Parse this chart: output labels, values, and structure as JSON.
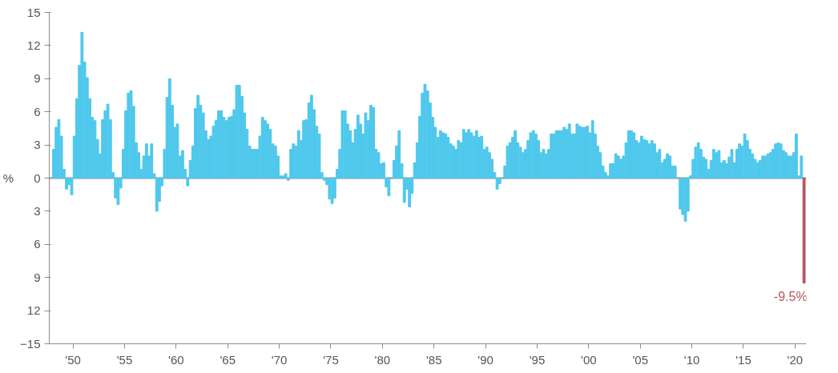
{
  "chart_data": {
    "type": "bar",
    "ylabel": "%",
    "x": [
      1948.125,
      1948.375,
      1948.625,
      1948.875,
      1949.125,
      1949.375,
      1949.625,
      1949.875,
      1950.125,
      1950.375,
      1950.625,
      1950.875,
      1951.125,
      1951.375,
      1951.625,
      1951.875,
      1952.125,
      1952.375,
      1952.625,
      1952.875,
      1953.125,
      1953.375,
      1953.625,
      1953.875,
      1954.125,
      1954.375,
      1954.625,
      1954.875,
      1955.125,
      1955.375,
      1955.625,
      1955.875,
      1956.125,
      1956.375,
      1956.625,
      1956.875,
      1957.125,
      1957.375,
      1957.625,
      1957.875,
      1958.125,
      1958.375,
      1958.625,
      1958.875,
      1959.125,
      1959.375,
      1959.625,
      1959.875,
      1960.125,
      1960.375,
      1960.625,
      1960.875,
      1961.125,
      1961.375,
      1961.625,
      1961.875,
      1962.125,
      1962.375,
      1962.625,
      1962.875,
      1963.125,
      1963.375,
      1963.625,
      1963.875,
      1964.125,
      1964.375,
      1964.625,
      1964.875,
      1965.125,
      1965.375,
      1965.625,
      1965.875,
      1966.125,
      1966.375,
      1966.625,
      1966.875,
      1967.125,
      1967.375,
      1967.625,
      1967.875,
      1968.125,
      1968.375,
      1968.625,
      1968.875,
      1969.125,
      1969.375,
      1969.625,
      1969.875,
      1970.125,
      1970.375,
      1970.625,
      1970.875,
      1971.125,
      1971.375,
      1971.625,
      1971.875,
      1972.125,
      1972.375,
      1972.625,
      1972.875,
      1973.125,
      1973.375,
      1973.625,
      1973.875,
      1974.125,
      1974.375,
      1974.625,
      1974.875,
      1975.125,
      1975.375,
      1975.625,
      1975.875,
      1976.125,
      1976.375,
      1976.625,
      1976.875,
      1977.125,
      1977.375,
      1977.625,
      1977.875,
      1978.125,
      1978.375,
      1978.625,
      1978.875,
      1979.125,
      1979.375,
      1979.625,
      1979.875,
      1980.125,
      1980.375,
      1980.625,
      1980.875,
      1981.125,
      1981.375,
      1981.625,
      1981.875,
      1982.125,
      1982.375,
      1982.625,
      1982.875,
      1983.125,
      1983.375,
      1983.625,
      1983.875,
      1984.125,
      1984.375,
      1984.625,
      1984.875,
      1985.125,
      1985.375,
      1985.625,
      1985.875,
      1986.125,
      1986.375,
      1986.625,
      1986.875,
      1987.125,
      1987.375,
      1987.625,
      1987.875,
      1988.125,
      1988.375,
      1988.625,
      1988.875,
      1989.125,
      1989.375,
      1989.625,
      1989.875,
      1990.125,
      1990.375,
      1990.625,
      1990.875,
      1991.125,
      1991.375,
      1991.625,
      1991.875,
      1992.125,
      1992.375,
      1992.625,
      1992.875,
      1993.125,
      1993.375,
      1993.625,
      1993.875,
      1994.125,
      1994.375,
      1994.625,
      1994.875,
      1995.125,
      1995.375,
      1995.625,
      1995.875,
      1996.125,
      1996.375,
      1996.625,
      1996.875,
      1997.125,
      1997.375,
      1997.625,
      1997.875,
      1998.125,
      1998.375,
      1998.625,
      1998.875,
      1999.125,
      1999.375,
      1999.625,
      1999.875,
      2000.125,
      2000.375,
      2000.625,
      2000.875,
      2001.125,
      2001.375,
      2001.625,
      2001.875,
      2002.125,
      2002.375,
      2002.625,
      2002.875,
      2003.125,
      2003.375,
      2003.625,
      2003.875,
      2004.125,
      2004.375,
      2004.625,
      2004.875,
      2005.125,
      2005.375,
      2005.625,
      2005.875,
      2006.125,
      2006.375,
      2006.625,
      2006.875,
      2007.125,
      2007.375,
      2007.625,
      2007.875,
      2008.125,
      2008.375,
      2008.625,
      2008.875,
      2009.125,
      2009.375,
      2009.625,
      2009.875,
      2010.125,
      2010.375,
      2010.625,
      2010.875,
      2011.125,
      2011.375,
      2011.625,
      2011.875,
      2012.125,
      2012.375,
      2012.625,
      2012.875,
      2013.125,
      2013.375,
      2013.625,
      2013.875,
      2014.125,
      2014.375,
      2014.625,
      2014.875,
      2015.125,
      2015.375,
      2015.625,
      2015.875,
      2016.125,
      2016.375,
      2016.625,
      2016.875,
      2017.125,
      2017.375,
      2017.625,
      2017.875,
      2018.125,
      2018.375,
      2018.625,
      2018.875,
      2019.125,
      2019.375,
      2019.625,
      2019.875,
      2020.125,
      2020.375,
      2020.625,
      2020.875
    ],
    "values": [
      2.6,
      4.6,
      5.3,
      3.8,
      0.8,
      -1.0,
      -0.6,
      -1.5,
      3.8,
      7.2,
      10.2,
      13.2,
      10.5,
      9.1,
      7.2,
      5.5,
      5.2,
      3.5,
      2.2,
      5.3,
      6.1,
      6.7,
      5.3,
      0.5,
      -1.8,
      -2.4,
      -0.9,
      2.6,
      6.1,
      7.7,
      7.9,
      6.5,
      3.2,
      2.3,
      0.8,
      2.0,
      3.1,
      2.0,
      3.1,
      0.4,
      -3.0,
      -2.1,
      -0.7,
      2.6,
      7.3,
      9.0,
      6.6,
      4.6,
      4.9,
      2.0,
      2.5,
      0.8,
      -0.7,
      1.6,
      2.9,
      6.3,
      7.5,
      6.6,
      5.9,
      4.3,
      3.5,
      3.8,
      4.7,
      5.2,
      6.1,
      6.1,
      5.5,
      5.2,
      5.5,
      5.6,
      6.2,
      8.4,
      8.4,
      7.4,
      5.9,
      4.4,
      2.9,
      2.6,
      2.6,
      2.6,
      3.8,
      5.5,
      5.2,
      4.9,
      4.4,
      3.1,
      2.9,
      2.0,
      0.2,
      0.2,
      0.4,
      -0.2,
      2.6,
      3.1,
      2.9,
      4.3,
      3.4,
      5.2,
      5.3,
      6.8,
      7.5,
      6.2,
      4.7,
      4.0,
      0.5,
      -0.2,
      -0.6,
      -1.9,
      -2.3,
      -1.8,
      0.8,
      2.6,
      6.1,
      6.1,
      4.9,
      4.3,
      3.2,
      4.4,
      5.7,
      4.9,
      4.0,
      5.9,
      5.2,
      6.6,
      6.4,
      2.6,
      2.3,
      1.3,
      1.4,
      -0.8,
      -1.6,
      null,
      1.6,
      2.9,
      4.3,
      1.3,
      -2.2,
      -1.0,
      -2.6,
      -1.4,
      1.4,
      3.2,
      5.6,
      7.7,
      8.5,
      7.9,
      6.8,
      5.5,
      4.6,
      3.7,
      4.3,
      4.1,
      4.0,
      3.7,
      3.1,
      2.9,
      2.6,
      3.4,
      3.2,
      4.4,
      4.1,
      4.4,
      4.1,
      3.8,
      4.3,
      3.7,
      3.8,
      2.6,
      2.8,
      2.3,
      1.7,
      0.5,
      -1.0,
      -0.5,
      null,
      1.1,
      2.9,
      3.2,
      3.7,
      4.3,
      3.2,
      2.8,
      2.3,
      2.6,
      3.4,
      4.1,
      4.3,
      4.0,
      3.4,
      2.3,
      2.6,
      2.2,
      2.6,
      4.0,
      4.0,
      4.3,
      4.3,
      4.3,
      4.6,
      4.4,
      4.9,
      4.0,
      4.0,
      4.9,
      4.7,
      4.6,
      4.6,
      4.7,
      4.1,
      5.2,
      4.0,
      2.9,
      2.3,
      1.1,
      0.5,
      0.2,
      1.3,
      1.3,
      2.2,
      2.0,
      1.7,
      2.0,
      3.2,
      4.3,
      4.3,
      4.1,
      3.4,
      3.2,
      3.8,
      3.5,
      3.4,
      3.1,
      3.4,
      3.1,
      2.3,
      2.6,
      1.4,
      1.7,
      2.2,
      2.0,
      1.1,
      1.1,
      null,
      -2.8,
      -3.3,
      -3.9,
      -3.0,
      0.2,
      1.7,
      2.8,
      3.2,
      2.6,
      1.9,
      1.7,
      0.8,
      1.6,
      2.6,
      2.3,
      2.5,
      1.4,
      1.6,
      1.3,
      1.9,
      2.6,
      1.4,
      2.6,
      3.1,
      2.9,
      4.0,
      3.4,
      2.6,
      2.2,
      1.7,
      1.4,
      1.6,
      2.0,
      2.0,
      2.2,
      2.3,
      2.6,
      3.1,
      3.2,
      3.1,
      2.5,
      2.3,
      2.0,
      2.0,
      2.3,
      4.0,
      0.2,
      2.0,
      -9.5
    ],
    "colors": [
      "#4fc8ec",
      "#4fc8ec",
      "#4fc8ec",
      "#4fc8ec",
      "#4fc8ec",
      "#4fc8ec",
      "#4fc8ec",
      "#4fc8ec",
      "#4fc8ec",
      "#4fc8ec",
      "#4fc8ec",
      "#4fc8ec",
      "#4fc8ec",
      "#4fc8ec",
      "#4fc8ec",
      "#4fc8ec",
      "#4fc8ec",
      "#4fc8ec",
      "#4fc8ec",
      "#4fc8ec",
      "#4fc8ec",
      "#4fc8ec",
      "#4fc8ec",
      "#4fc8ec",
      "#4fc8ec",
      "#4fc8ec",
      "#4fc8ec",
      "#4fc8ec",
      "#4fc8ec",
      "#4fc8ec",
      "#4fc8ec",
      "#4fc8ec",
      "#4fc8ec",
      "#4fc8ec",
      "#4fc8ec",
      "#4fc8ec",
      "#4fc8ec",
      "#4fc8ec",
      "#4fc8ec",
      "#4fc8ec",
      "#4fc8ec",
      "#4fc8ec",
      "#4fc8ec",
      "#4fc8ec",
      "#4fc8ec",
      "#4fc8ec",
      "#4fc8ec",
      "#4fc8ec",
      "#4fc8ec",
      "#4fc8ec",
      "#4fc8ec",
      "#4fc8ec",
      "#4fc8ec",
      "#4fc8ec",
      "#4fc8ec",
      "#4fc8ec",
      "#4fc8ec",
      "#4fc8ec",
      "#4fc8ec",
      "#4fc8ec",
      "#4fc8ec",
      "#4fc8ec",
      "#4fc8ec",
      "#4fc8ec",
      "#4fc8ec",
      "#4fc8ec",
      "#4fc8ec",
      "#4fc8ec",
      "#4fc8ec",
      "#4fc8ec",
      "#4fc8ec",
      "#4fc8ec",
      "#4fc8ec",
      "#4fc8ec",
      "#4fc8ec",
      "#4fc8ec",
      "#4fc8ec",
      "#4fc8ec",
      "#4fc8ec",
      "#4fc8ec",
      "#4fc8ec",
      "#4fc8ec",
      "#4fc8ec",
      "#4fc8ec",
      "#4fc8ec",
      "#4fc8ec",
      "#4fc8ec",
      "#4fc8ec",
      "#4fc8ec",
      "#4fc8ec",
      "#4fc8ec",
      "#4fc8ec",
      "#4fc8ec",
      "#4fc8ec",
      "#4fc8ec",
      "#4fc8ec",
      "#4fc8ec",
      "#4fc8ec",
      "#4fc8ec",
      "#4fc8ec",
      "#4fc8ec",
      "#4fc8ec",
      "#4fc8ec",
      "#4fc8ec",
      "#4fc8ec",
      "#4fc8ec",
      "#4fc8ec",
      "#4fc8ec",
      "#4fc8ec",
      "#4fc8ec",
      "#4fc8ec",
      "#4fc8ec",
      "#4fc8ec",
      "#4fc8ec",
      "#4fc8ec",
      "#4fc8ec",
      "#4fc8ec",
      "#4fc8ec",
      "#4fc8ec",
      "#4fc8ec",
      "#4fc8ec",
      "#4fc8ec",
      "#4fc8ec",
      "#4fc8ec",
      "#4fc8ec",
      "#4fc8ec",
      "#4fc8ec",
      "#4fc8ec",
      "#4fc8ec",
      "#4fc8ec",
      "#4fc8ec",
      "#4fc8ec",
      "#4fc8ec",
      "#4fc8ec",
      "#4fc8ec",
      "#4fc8ec",
      "#4fc8ec",
      "#4fc8ec",
      "#4fc8ec",
      "#4fc8ec",
      "#4fc8ec",
      "#4fc8ec",
      "#4fc8ec",
      "#4fc8ec",
      "#4fc8ec",
      "#4fc8ec",
      "#4fc8ec",
      "#4fc8ec",
      "#4fc8ec",
      "#4fc8ec",
      "#4fc8ec",
      "#4fc8ec",
      "#4fc8ec",
      "#4fc8ec",
      "#4fc8ec",
      "#4fc8ec",
      "#4fc8ec",
      "#4fc8ec",
      "#4fc8ec",
      "#4fc8ec",
      "#4fc8ec",
      "#4fc8ec",
      "#4fc8ec",
      "#4fc8ec",
      "#4fc8ec",
      "#4fc8ec",
      "#4fc8ec",
      "#4fc8ec",
      "#4fc8ec",
      "#4fc8ec",
      "#4fc8ec",
      "#4fc8ec",
      "#4fc8ec",
      "#4fc8ec",
      "#4fc8ec",
      "#4fc8ec",
      "#4fc8ec",
      "#4fc8ec",
      "#4fc8ec",
      "#4fc8ec",
      "#4fc8ec",
      "#4fc8ec",
      "#4fc8ec",
      "#4fc8ec",
      "#4fc8ec",
      "#4fc8ec",
      "#4fc8ec",
      "#4fc8ec",
      "#4fc8ec",
      "#4fc8ec",
      "#4fc8ec",
      "#4fc8ec",
      "#4fc8ec",
      "#4fc8ec",
      "#4fc8ec",
      "#4fc8ec",
      "#4fc8ec",
      "#4fc8ec",
      "#4fc8ec",
      "#4fc8ec",
      "#4fc8ec",
      "#4fc8ec",
      "#4fc8ec",
      "#4fc8ec",
      "#4fc8ec",
      "#4fc8ec",
      "#4fc8ec",
      "#4fc8ec",
      "#4fc8ec",
      "#4fc8ec",
      "#4fc8ec",
      "#4fc8ec",
      "#4fc8ec",
      "#4fc8ec",
      "#4fc8ec",
      "#4fc8ec",
      "#4fc8ec",
      "#4fc8ec",
      "#4fc8ec",
      "#4fc8ec",
      "#4fc8ec",
      "#4fc8ec",
      "#4fc8ec",
      "#4fc8ec",
      "#4fc8ec",
      "#4fc8ec",
      "#4fc8ec",
      "#4fc8ec",
      "#4fc8ec",
      "#4fc8ec",
      "#4fc8ec",
      "#4fc8ec",
      "#4fc8ec",
      "#4fc8ec",
      "#4fc8ec",
      "#4fc8ec",
      "#4fc8ec",
      "#4fc8ec",
      "#4fc8ec",
      "#4fc8ec",
      "#4fc8ec",
      "#4fc8ec",
      "#4fc8ec",
      "#4fc8ec",
      "#4fc8ec",
      "#4fc8ec",
      "#4fc8ec",
      "#4fc8ec",
      "#4fc8ec",
      "#4fc8ec",
      "#4fc8ec",
      "#4fc8ec",
      "#4fc8ec",
      "#4fc8ec",
      "#4fc8ec",
      "#4fc8ec",
      "#4fc8ec",
      "#4fc8ec",
      "#4fc8ec",
      "#4fc8ec",
      "#4fc8ec",
      "#4fc8ec",
      "#4fc8ec",
      "#4fc8ec",
      "#4fc8ec",
      "#4fc8ec",
      "#4fc8ec",
      "#4fc8ec",
      "#4fc8ec",
      "#4fc8ec",
      "#4fc8ec",
      "#4fc8ec",
      "#4fc8ec",
      "#4fc8ec",
      "#4fc8ec",
      "#4fc8ec",
      "#4fc8ec",
      "#4fc8ec",
      "#4fc8ec",
      "#4fc8ec",
      "#4fc8ec",
      "#4fc8ec",
      "#4fc8ec",
      "#4fc8ec",
      "#4fc8ec",
      "#4fc8ec",
      "#4fc8ec",
      "#4fc8ec",
      "#4fc8ec",
      "#4fc8ec",
      "#4fc8ec",
      "#b5565e"
    ],
    "xlim": [
      1947.7,
      2021.1
    ],
    "xticks": [
      {
        "value": 1950,
        "label": "'50"
      },
      {
        "value": 1955,
        "label": "'55"
      },
      {
        "value": 1960,
        "label": "'60"
      },
      {
        "value": 1965,
        "label": "'65"
      },
      {
        "value": 1970,
        "label": "'70"
      },
      {
        "value": 1975,
        "label": "'75"
      },
      {
        "value": 1980,
        "label": "'80"
      },
      {
        "value": 1985,
        "label": "'85"
      },
      {
        "value": 1990,
        "label": "'90"
      },
      {
        "value": 1995,
        "label": "'95"
      },
      {
        "value": 2000,
        "label": "'00"
      },
      {
        "value": 2005,
        "label": "'05"
      },
      {
        "value": 2010,
        "label": "'10"
      },
      {
        "value": 2015,
        "label": "'15"
      },
      {
        "value": 2020,
        "label": "'20"
      }
    ],
    "ylim": [
      -15,
      15
    ],
    "yticks": [
      15,
      12,
      9,
      6,
      3,
      0,
      {
        "value": -3,
        "label": "3"
      },
      {
        "value": -6,
        "label": "6"
      },
      {
        "value": -9,
        "label": "9"
      },
      {
        "value": -12,
        "label": "12"
      },
      -15
    ],
    "ref_lines": [
      {
        "axis": "y",
        "value": 0,
        "color": "#8c8c8c"
      }
    ],
    "annotations": [
      {
        "text": "-9.5%",
        "x": 2020.875,
        "y": -9.5
      }
    ],
    "grid": false
  }
}
